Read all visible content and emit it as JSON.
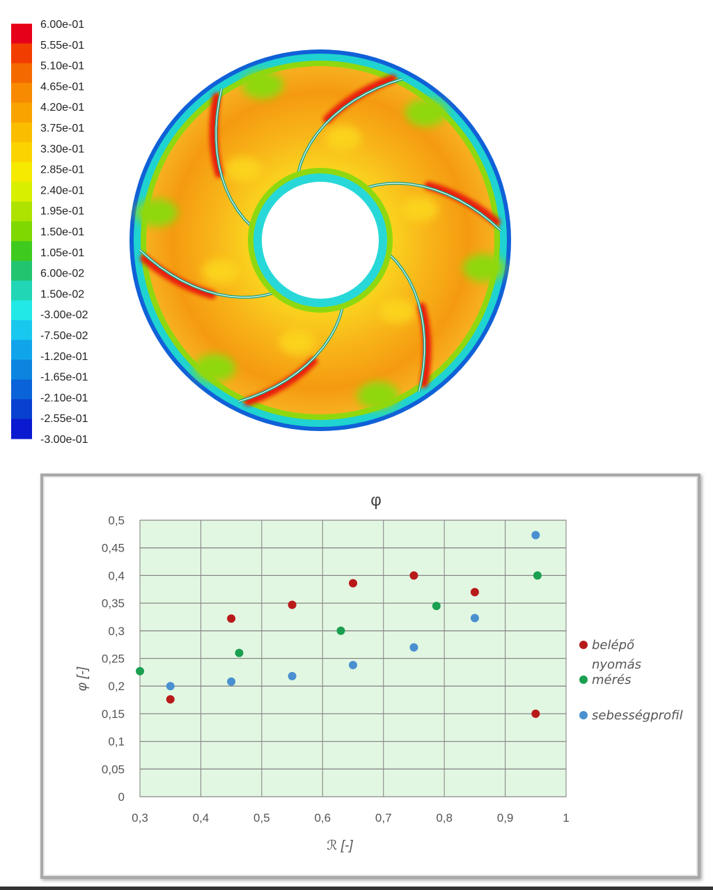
{
  "colorbar": {
    "labels": [
      "6.00e-01",
      "5.55e-01",
      "5.10e-01",
      "4.65e-01",
      "4.20e-01",
      "3.75e-01",
      "3.30e-01",
      "2.85e-01",
      "2.40e-01",
      "1.95e-01",
      "1.50e-01",
      "1.05e-01",
      "6.00e-02",
      "1.50e-02",
      "-3.00e-02",
      "-7.50e-02",
      "-1.20e-01",
      "-1.65e-01",
      "-2.10e-01",
      "-2.55e-01",
      "-3.00e-01"
    ],
    "colors": [
      "#e6001a",
      "#f23d00",
      "#f56a00",
      "#f78a00",
      "#f9a300",
      "#fbbd00",
      "#fbd400",
      "#f5ea00",
      "#d9ef00",
      "#aee300",
      "#7fd800",
      "#3fca1f",
      "#22c470",
      "#20d6b4",
      "#22e8e6",
      "#18c8ef",
      "#10a5ea",
      "#0c85e0",
      "#0a63d8",
      "#0840d0",
      "#0a1ad0"
    ]
  },
  "contour": {
    "blade_count": 6,
    "colors": {
      "outer_band": "#1fd3d0",
      "outer_edge": "#1060d8",
      "field": "#f59a10",
      "mid": "#fbd21a",
      "hub_ring": "#28d8d8",
      "green_patch": "#8fd80f",
      "red_streak": "#e81a10",
      "blade_line": "#1aa08a"
    }
  },
  "chart_data": {
    "type": "scatter",
    "title": "φ",
    "xlabel": "ℛ [-]",
    "ylabel": "φ [-]",
    "xlim": [
      0.3,
      1
    ],
    "ylim": [
      0,
      0.5
    ],
    "xticks": [
      0.3,
      0.4,
      0.5,
      0.6,
      0.7,
      0.8,
      0.9,
      1
    ],
    "xtick_labels": [
      "0,3",
      "0,4",
      "0,5",
      "0,6",
      "0,7",
      "0,8",
      "0,9",
      "1"
    ],
    "yticks": [
      0,
      0.05,
      0.1,
      0.15,
      0.2,
      0.25,
      0.3,
      0.35,
      0.4,
      0.45,
      0.5
    ],
    "ytick_labels": [
      "0",
      "0,05",
      "0,1",
      "0,15",
      "0,2",
      "0,25",
      "0,3",
      "0,35",
      "0,4",
      "0,45",
      "0,5"
    ],
    "grid": true,
    "plot_background": "#e2f7e2",
    "legend_position": "right",
    "series": [
      {
        "name": "belépő nyomás",
        "color": "#b81a1a",
        "points": [
          [
            0.35,
            0.176
          ],
          [
            0.45,
            0.322
          ],
          [
            0.55,
            0.347
          ],
          [
            0.65,
            0.386
          ],
          [
            0.75,
            0.4
          ],
          [
            0.85,
            0.37
          ],
          [
            0.95,
            0.15
          ]
        ]
      },
      {
        "name": "mérés",
        "color": "#1aa050",
        "points": [
          [
            0.3,
            0.227
          ],
          [
            0.463,
            0.26
          ],
          [
            0.63,
            0.3
          ],
          [
            0.787,
            0.345
          ],
          [
            0.953,
            0.4
          ]
        ]
      },
      {
        "name": "sebességprofil",
        "color": "#4a90d0",
        "points": [
          [
            0.35,
            0.2
          ],
          [
            0.45,
            0.208
          ],
          [
            0.55,
            0.218
          ],
          [
            0.65,
            0.238
          ],
          [
            0.75,
            0.27
          ],
          [
            0.85,
            0.323
          ],
          [
            0.95,
            0.473
          ]
        ]
      }
    ]
  }
}
